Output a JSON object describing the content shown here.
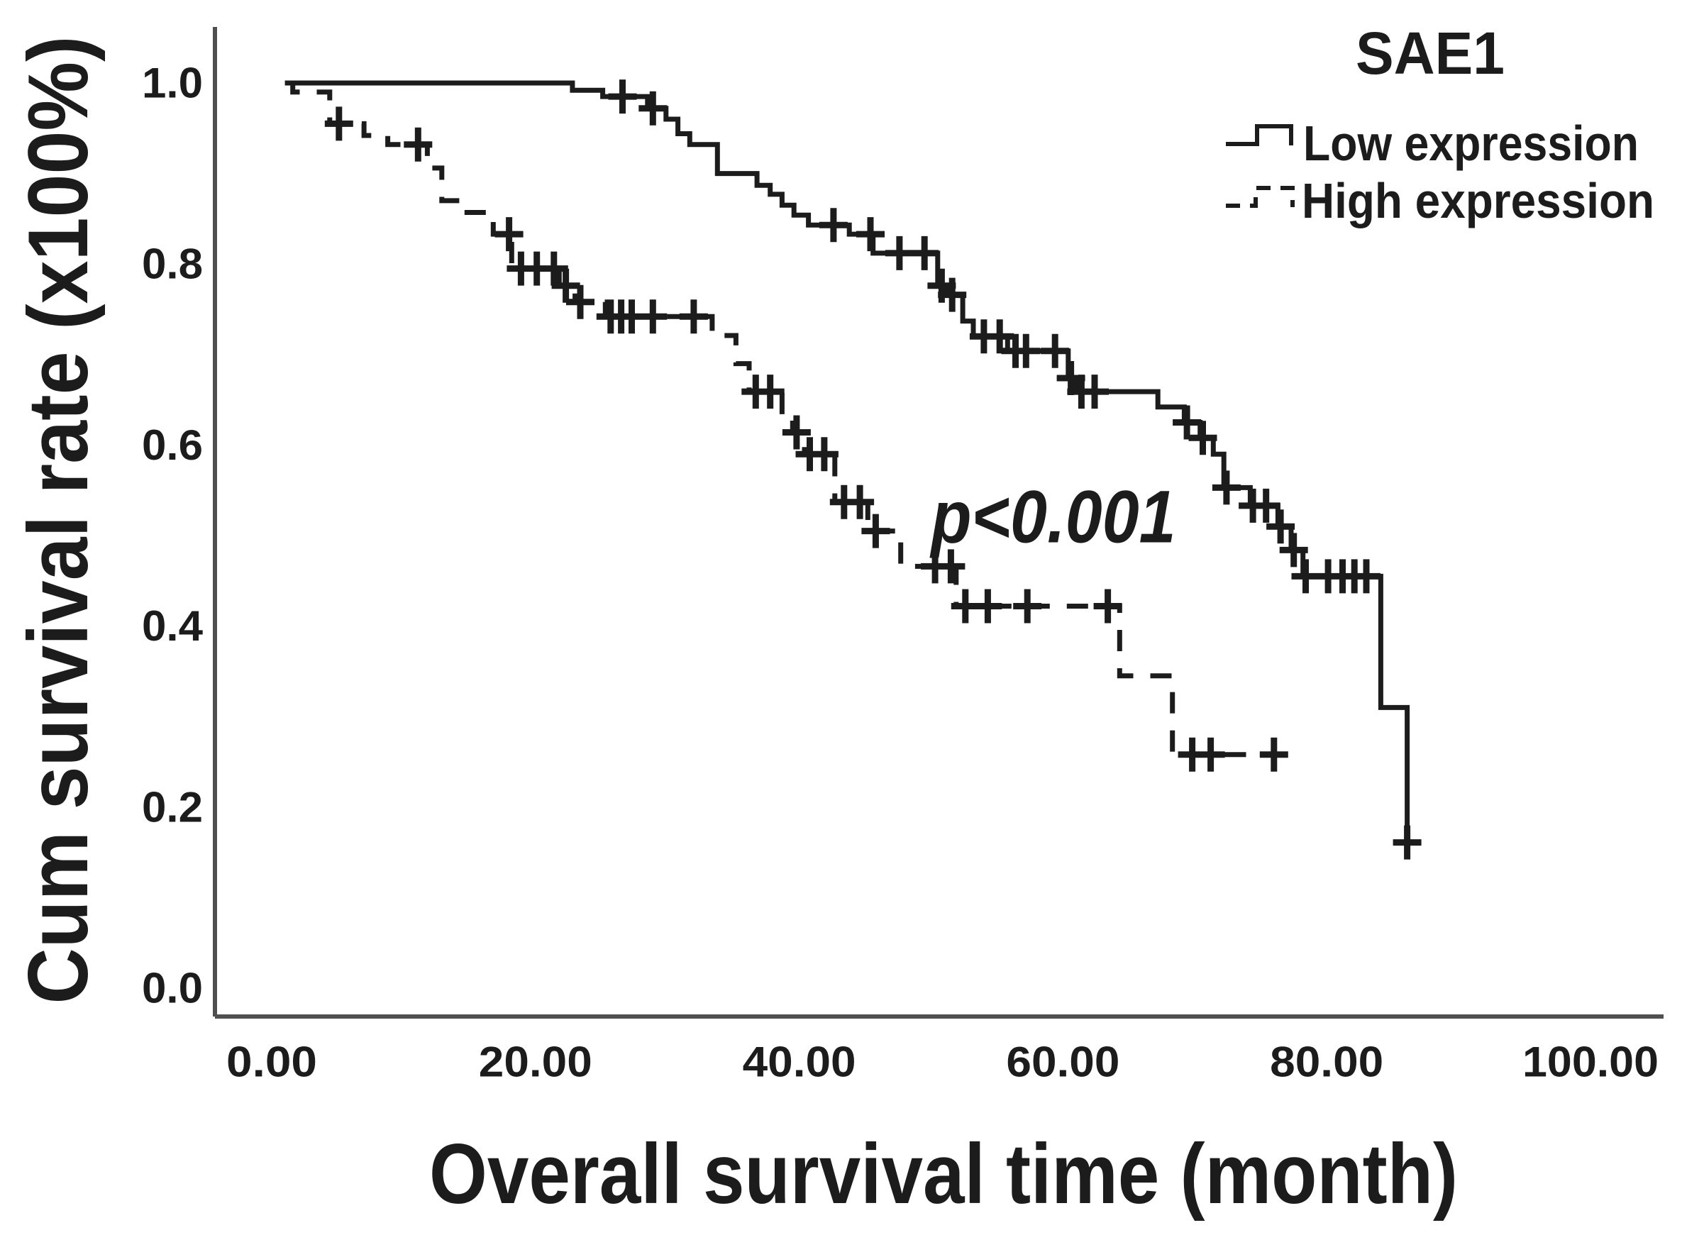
{
  "figure": {
    "background": "#ffffff",
    "ink_color": "#1c1c1c",
    "axis_color": "#4f4f4f"
  },
  "legend": {
    "title": "SAE1",
    "items": [
      {
        "label": "Low expression",
        "line_style": "solid"
      },
      {
        "label": "High expression",
        "line_style": "dashed"
      }
    ]
  },
  "chart_data": {
    "type": "line",
    "subtype": "kaplan_meier_step",
    "title": "SAE1",
    "xlabel": "Overall survival time (month)",
    "ylabel": "Cum survival rate (x100%)",
    "xlim": [
      0,
      100
    ],
    "ylim": [
      0.0,
      1.0
    ],
    "grid": false,
    "legend_position": "top-right",
    "x_ticks": [
      "0.00",
      "20.00",
      "40.00",
      "60.00",
      "80.00",
      "100.00"
    ],
    "x_tick_values": [
      0,
      20,
      40,
      60,
      80,
      100
    ],
    "y_ticks": [
      "0.0",
      "0.2",
      "0.4",
      "0.6",
      "0.8",
      "1.0"
    ],
    "y_tick_values": [
      0.0,
      0.2,
      0.4,
      0.6,
      0.8,
      1.0
    ],
    "annotation": {
      "text": "p<0.001"
    },
    "series": [
      {
        "name": "Low expression",
        "style": "solid",
        "color": "#1c1c1c",
        "steps": [
          [
            1.0,
            1.0
          ],
          [
            22.8,
            0.992
          ],
          [
            25.1,
            0.985
          ],
          [
            28.5,
            0.972
          ],
          [
            29.9,
            0.96
          ],
          [
            30.8,
            0.944
          ],
          [
            31.7,
            0.932
          ],
          [
            33.8,
            0.9
          ],
          [
            36.8,
            0.887
          ],
          [
            37.8,
            0.877
          ],
          [
            38.7,
            0.865
          ],
          [
            39.6,
            0.854
          ],
          [
            40.7,
            0.843
          ],
          [
            43.8,
            0.833
          ],
          [
            45.6,
            0.812
          ],
          [
            50.5,
            0.776
          ],
          [
            51.2,
            0.766
          ],
          [
            52.4,
            0.737
          ],
          [
            53.2,
            0.72
          ],
          [
            55.8,
            0.704
          ],
          [
            60.4,
            0.674
          ],
          [
            61.0,
            0.659
          ],
          [
            67.2,
            0.642
          ],
          [
            69.2,
            0.625
          ],
          [
            70.4,
            0.608
          ],
          [
            71.4,
            0.59
          ],
          [
            72.2,
            0.553
          ],
          [
            74.2,
            0.533
          ],
          [
            76.3,
            0.51
          ],
          [
            77.3,
            0.484
          ],
          [
            78.2,
            0.455
          ],
          [
            84.1,
            0.31
          ],
          [
            86.1,
            0.161
          ]
        ],
        "end_time": null,
        "censor_marks": [
          [
            26.6,
            0.985
          ],
          [
            28.9,
            0.972
          ],
          [
            42.6,
            0.843
          ],
          [
            45.4,
            0.833
          ],
          [
            47.6,
            0.812
          ],
          [
            49.5,
            0.812
          ],
          [
            50.8,
            0.776
          ],
          [
            51.6,
            0.766
          ],
          [
            54.0,
            0.72
          ],
          [
            55.2,
            0.72
          ],
          [
            56.4,
            0.704
          ],
          [
            57.2,
            0.704
          ],
          [
            59.4,
            0.704
          ],
          [
            60.6,
            0.674
          ],
          [
            61.4,
            0.659
          ],
          [
            62.4,
            0.659
          ],
          [
            69.4,
            0.625
          ],
          [
            70.6,
            0.608
          ],
          [
            72.4,
            0.553
          ],
          [
            74.4,
            0.533
          ],
          [
            75.4,
            0.533
          ],
          [
            76.5,
            0.51
          ],
          [
            77.5,
            0.484
          ],
          [
            78.4,
            0.455
          ],
          [
            80.1,
            0.455
          ],
          [
            81.2,
            0.455
          ],
          [
            82.1,
            0.455
          ],
          [
            83.0,
            0.455
          ],
          [
            86.1,
            0.161
          ]
        ]
      },
      {
        "name": "High expression",
        "style": "dashed",
        "color": "#1c1c1c",
        "steps": [
          [
            1.2,
            1.0
          ],
          [
            1.6,
            0.99
          ],
          [
            4.4,
            0.955
          ],
          [
            7.0,
            0.942
          ],
          [
            8.8,
            0.932
          ],
          [
            11.8,
            0.906
          ],
          [
            12.9,
            0.87
          ],
          [
            14.4,
            0.857
          ],
          [
            16.8,
            0.833
          ],
          [
            18.2,
            0.795
          ],
          [
            21.8,
            0.776
          ],
          [
            23.0,
            0.758
          ],
          [
            25.3,
            0.742
          ],
          [
            33.4,
            0.721
          ],
          [
            35.2,
            0.69
          ],
          [
            36.2,
            0.659
          ],
          [
            38.7,
            0.63
          ],
          [
            39.5,
            0.614
          ],
          [
            40.4,
            0.59
          ],
          [
            42.7,
            0.537
          ],
          [
            45.2,
            0.505
          ],
          [
            47.7,
            0.466
          ],
          [
            51.9,
            0.422
          ],
          [
            64.3,
            0.345
          ],
          [
            68.3,
            0.258
          ]
        ],
        "end_time": 77.5,
        "censor_marks": [
          [
            5.1,
            0.955
          ],
          [
            11.1,
            0.932
          ],
          [
            18.0,
            0.833
          ],
          [
            18.9,
            0.795
          ],
          [
            20.1,
            0.795
          ],
          [
            21.4,
            0.795
          ],
          [
            22.3,
            0.776
          ],
          [
            23.4,
            0.758
          ],
          [
            25.7,
            0.742
          ],
          [
            26.5,
            0.742
          ],
          [
            27.3,
            0.742
          ],
          [
            28.9,
            0.742
          ],
          [
            32.0,
            0.742
          ],
          [
            36.7,
            0.659
          ],
          [
            37.8,
            0.659
          ],
          [
            39.8,
            0.614
          ],
          [
            40.8,
            0.59
          ],
          [
            41.9,
            0.59
          ],
          [
            43.4,
            0.537
          ],
          [
            44.6,
            0.537
          ],
          [
            45.8,
            0.505
          ],
          [
            50.3,
            0.466
          ],
          [
            51.5,
            0.466
          ],
          [
            52.6,
            0.422
          ],
          [
            54.3,
            0.422
          ],
          [
            57.3,
            0.422
          ],
          [
            63.4,
            0.422
          ],
          [
            69.8,
            0.258
          ],
          [
            71.2,
            0.258
          ],
          [
            76.0,
            0.258
          ]
        ]
      }
    ]
  }
}
